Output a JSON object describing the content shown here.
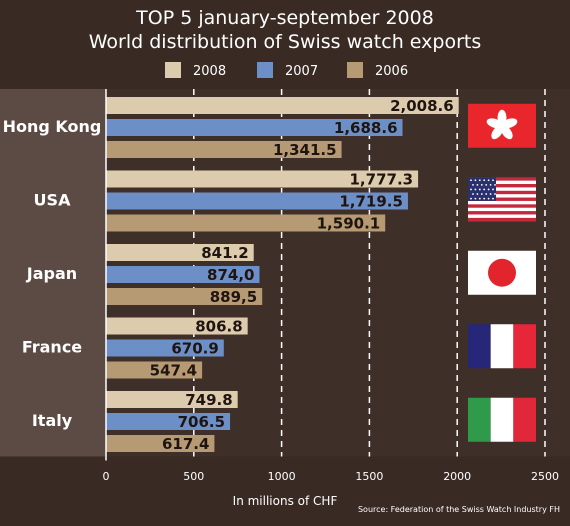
{
  "chart_data": {
    "type": "bar",
    "orientation": "horizontal",
    "title": "TOP 5 january-september 2008",
    "subtitle": "World distribution of Swiss watch exports",
    "xlabel": "In millions of CHF",
    "source": "Source: Federation of the Swiss Watch Industry FH",
    "xlim": [
      0,
      2500
    ],
    "xticks": [
      "0",
      "500",
      "1000",
      "1500",
      "2000",
      "2500"
    ],
    "xtick_values": [
      0,
      500,
      1000,
      1500,
      2000,
      2500
    ],
    "grid": "vertical dashed",
    "legend_position": "top",
    "categories": [
      "Hong Kong",
      "USA",
      "Japan",
      "France",
      "Italy"
    ],
    "flags": [
      "hong-kong-flag",
      "usa-flag",
      "japan-flag",
      "france-flag",
      "italy-flag"
    ],
    "series": [
      {
        "name": "2008",
        "color": "#dcccad",
        "values": [
          2008.6,
          1777.3,
          841.2,
          806.8,
          749.8
        ],
        "labels": [
          "2,008.6",
          "1,777.3",
          "841.2",
          "806.8",
          "749.8"
        ]
      },
      {
        "name": "2007",
        "color": "#6b8fc6",
        "values": [
          1688.6,
          1719.5,
          874.0,
          670.9,
          706.5
        ],
        "labels": [
          "1,688.6",
          "1,719.5",
          "874,0",
          "670.9",
          "706.5"
        ]
      },
      {
        "name": "2006",
        "color": "#b69a73",
        "values": [
          1341.5,
          1590.1,
          889.5,
          547.4,
          617.4
        ],
        "labels": [
          "1,341.5",
          "1,590.1",
          "889,5",
          "547.4",
          "617.4"
        ]
      }
    ],
    "colors": {
      "background": "#3a2a24",
      "band_dark": "#3f2f29",
      "band_light": "#5c4b45",
      "grid": "#ffffff"
    }
  }
}
